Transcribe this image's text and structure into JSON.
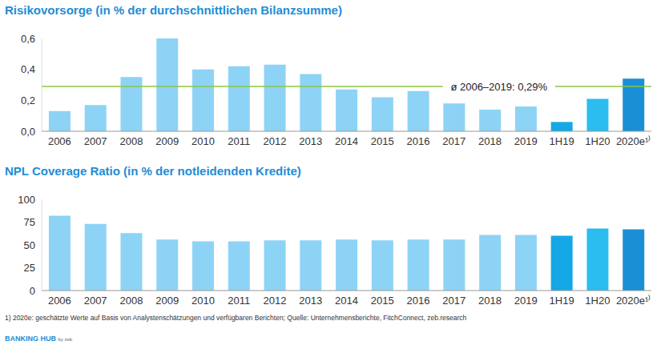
{
  "chart_data": [
    {
      "type": "bar",
      "title": "Risikovorsorge (in % der durchschnittlichen Bilanzsumme)",
      "categories": [
        "2006",
        "2007",
        "2008",
        "2009",
        "2010",
        "2011",
        "2012",
        "2013",
        "2014",
        "2015",
        "2016",
        "2017",
        "2018",
        "2019",
        "1H19",
        "1H20",
        "2020e¹⁾"
      ],
      "values": [
        0.13,
        0.17,
        0.35,
        0.6,
        0.4,
        0.42,
        0.43,
        0.37,
        0.27,
        0.22,
        0.26,
        0.18,
        0.14,
        0.16,
        0.06,
        0.21,
        0.34
      ],
      "colors": [
        "#8dd3f5",
        "#8dd3f5",
        "#8dd3f5",
        "#8dd3f5",
        "#8dd3f5",
        "#8dd3f5",
        "#8dd3f5",
        "#8dd3f5",
        "#8dd3f5",
        "#8dd3f5",
        "#8dd3f5",
        "#8dd3f5",
        "#8dd3f5",
        "#8dd3f5",
        "#14a8e6",
        "#2bbcf0",
        "#1a8fd6"
      ],
      "ylim": [
        0,
        0.6
      ],
      "yticks": [
        {
          "value": 0,
          "label": "0,0"
        },
        {
          "value": 0.2,
          "label": "0,2"
        },
        {
          "value": 0.4,
          "label": "0,4"
        },
        {
          "value": 0.6,
          "label": "0,6"
        }
      ],
      "average": 0.29,
      "average_label": "ø 2006–2019: 0,29%",
      "grid": false
    },
    {
      "type": "bar",
      "title": "NPL Coverage Ratio (in % der notleidenden Kredite)",
      "categories": [
        "2006",
        "2007",
        "2008",
        "2009",
        "2010",
        "2011",
        "2012",
        "2013",
        "2014",
        "2015",
        "2016",
        "2017",
        "2018",
        "2019",
        "1H19",
        "1H20",
        "2020e¹⁾"
      ],
      "values": [
        82,
        73,
        63,
        56,
        54,
        54,
        55,
        55,
        56,
        55,
        56,
        56,
        61,
        61,
        60,
        68,
        67
      ],
      "colors": [
        "#8dd3f5",
        "#8dd3f5",
        "#8dd3f5",
        "#8dd3f5",
        "#8dd3f5",
        "#8dd3f5",
        "#8dd3f5",
        "#8dd3f5",
        "#8dd3f5",
        "#8dd3f5",
        "#8dd3f5",
        "#8dd3f5",
        "#8dd3f5",
        "#8dd3f5",
        "#14a8e6",
        "#2bbcf0",
        "#1a8fd6"
      ],
      "ylim": [
        0,
        100
      ],
      "yticks": [
        0,
        25,
        50,
        75,
        100
      ],
      "grid": false
    }
  ],
  "footnote": "1) 2020e: geschätzte Werte auf Basis von Analystenschätzungen und verfügbaren Berichten; Quelle: Unternehmensberichte, FitchConnect, zeb.research",
  "logo": "BANKING HUB",
  "logo_suffix": "by zeb"
}
